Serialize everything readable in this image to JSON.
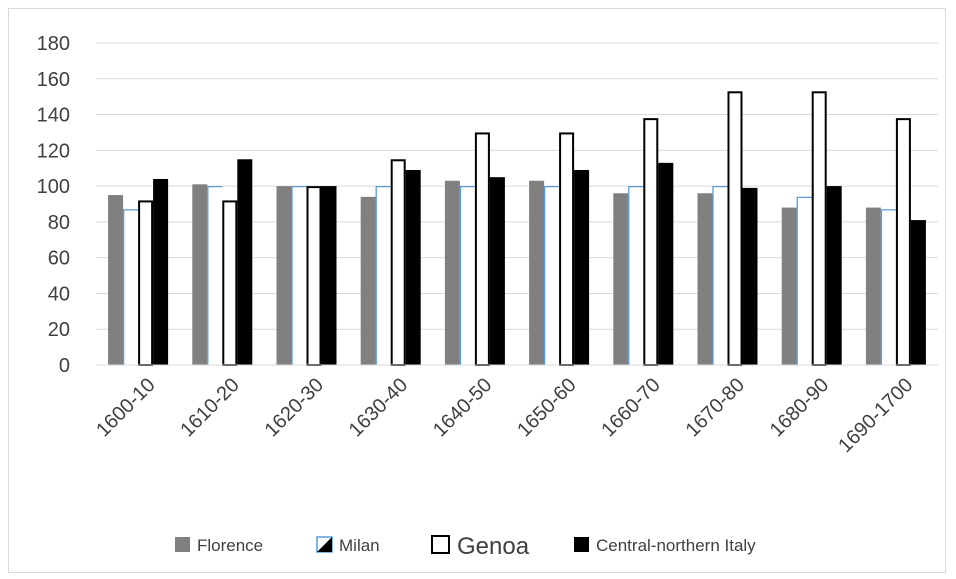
{
  "chart_data": {
    "type": "bar",
    "title": "",
    "xlabel": "",
    "ylabel": "",
    "ylim": [
      0,
      180
    ],
    "yticks": [
      "0",
      "20",
      "40",
      "60",
      "80",
      "100",
      "120",
      "140",
      "160",
      "180"
    ],
    "grid": true,
    "legend_position": "bottom",
    "categories": [
      "1600-10",
      "1610-20",
      "1620-30",
      "1630-40",
      "1640-50",
      "1650-60",
      "1660-70",
      "1670-80",
      "1680-90",
      "1690-1700"
    ],
    "series": [
      {
        "name": "Florence",
        "color": "#808080",
        "values": [
          95,
          101,
          100,
          94,
          103,
          103,
          96,
          96,
          88,
          88
        ]
      },
      {
        "name": "Milan",
        "color": "#5b9bd5",
        "values": [
          87,
          100,
          100,
          100,
          100,
          100,
          100,
          100,
          94,
          87
        ]
      },
      {
        "name": "Genoa",
        "color": "#000000",
        "values": [
          92,
          92,
          100,
          115,
          130,
          130,
          138,
          153,
          153,
          138
        ]
      },
      {
        "name": "Central-northern Italy",
        "color": "#000000",
        "values": [
          104,
          115,
          100,
          109,
          105,
          109,
          113,
          99,
          100,
          81
        ]
      }
    ]
  }
}
